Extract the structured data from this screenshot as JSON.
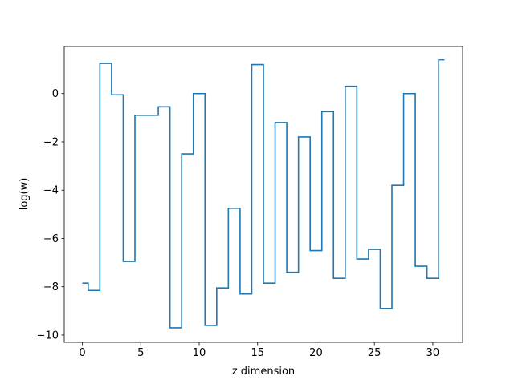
{
  "chart_data": {
    "type": "line",
    "drawstyle": "steps-mid",
    "xlabel": "z dimension",
    "ylabel": "log(w)",
    "xlim": [
      -1.55,
      32.55
    ],
    "ylim": [
      -10.3,
      1.95
    ],
    "xticks": [
      0,
      5,
      10,
      15,
      20,
      25,
      30
    ],
    "xtick_labels": [
      "0",
      "5",
      "10",
      "15",
      "20",
      "25",
      "30"
    ],
    "yticks": [
      -10,
      -8,
      -6,
      -4,
      -2,
      0
    ],
    "ytick_labels": [
      "−10",
      "−8",
      "−6",
      "−4",
      "−2",
      "0"
    ],
    "grid": false,
    "series": [
      {
        "color": "#1f77b4",
        "x": [
          0,
          1,
          2,
          3,
          4,
          5,
          6,
          7,
          8,
          9,
          10,
          11,
          12,
          13,
          14,
          15,
          16,
          17,
          18,
          19,
          20,
          21,
          22,
          23,
          24,
          25,
          26,
          27,
          28,
          29,
          30,
          31
        ],
        "y": [
          -7.85,
          -8.15,
          1.25,
          -0.05,
          -6.95,
          -0.9,
          -0.9,
          -0.55,
          -9.7,
          -2.5,
          0.0,
          -9.6,
          -8.05,
          -4.75,
          -8.3,
          1.2,
          -7.85,
          -1.2,
          -7.4,
          -1.8,
          -6.5,
          -0.75,
          -7.65,
          0.3,
          -6.85,
          -6.45,
          -8.9,
          -3.8,
          0.0,
          -7.15,
          -7.65,
          1.4
        ]
      }
    ]
  }
}
